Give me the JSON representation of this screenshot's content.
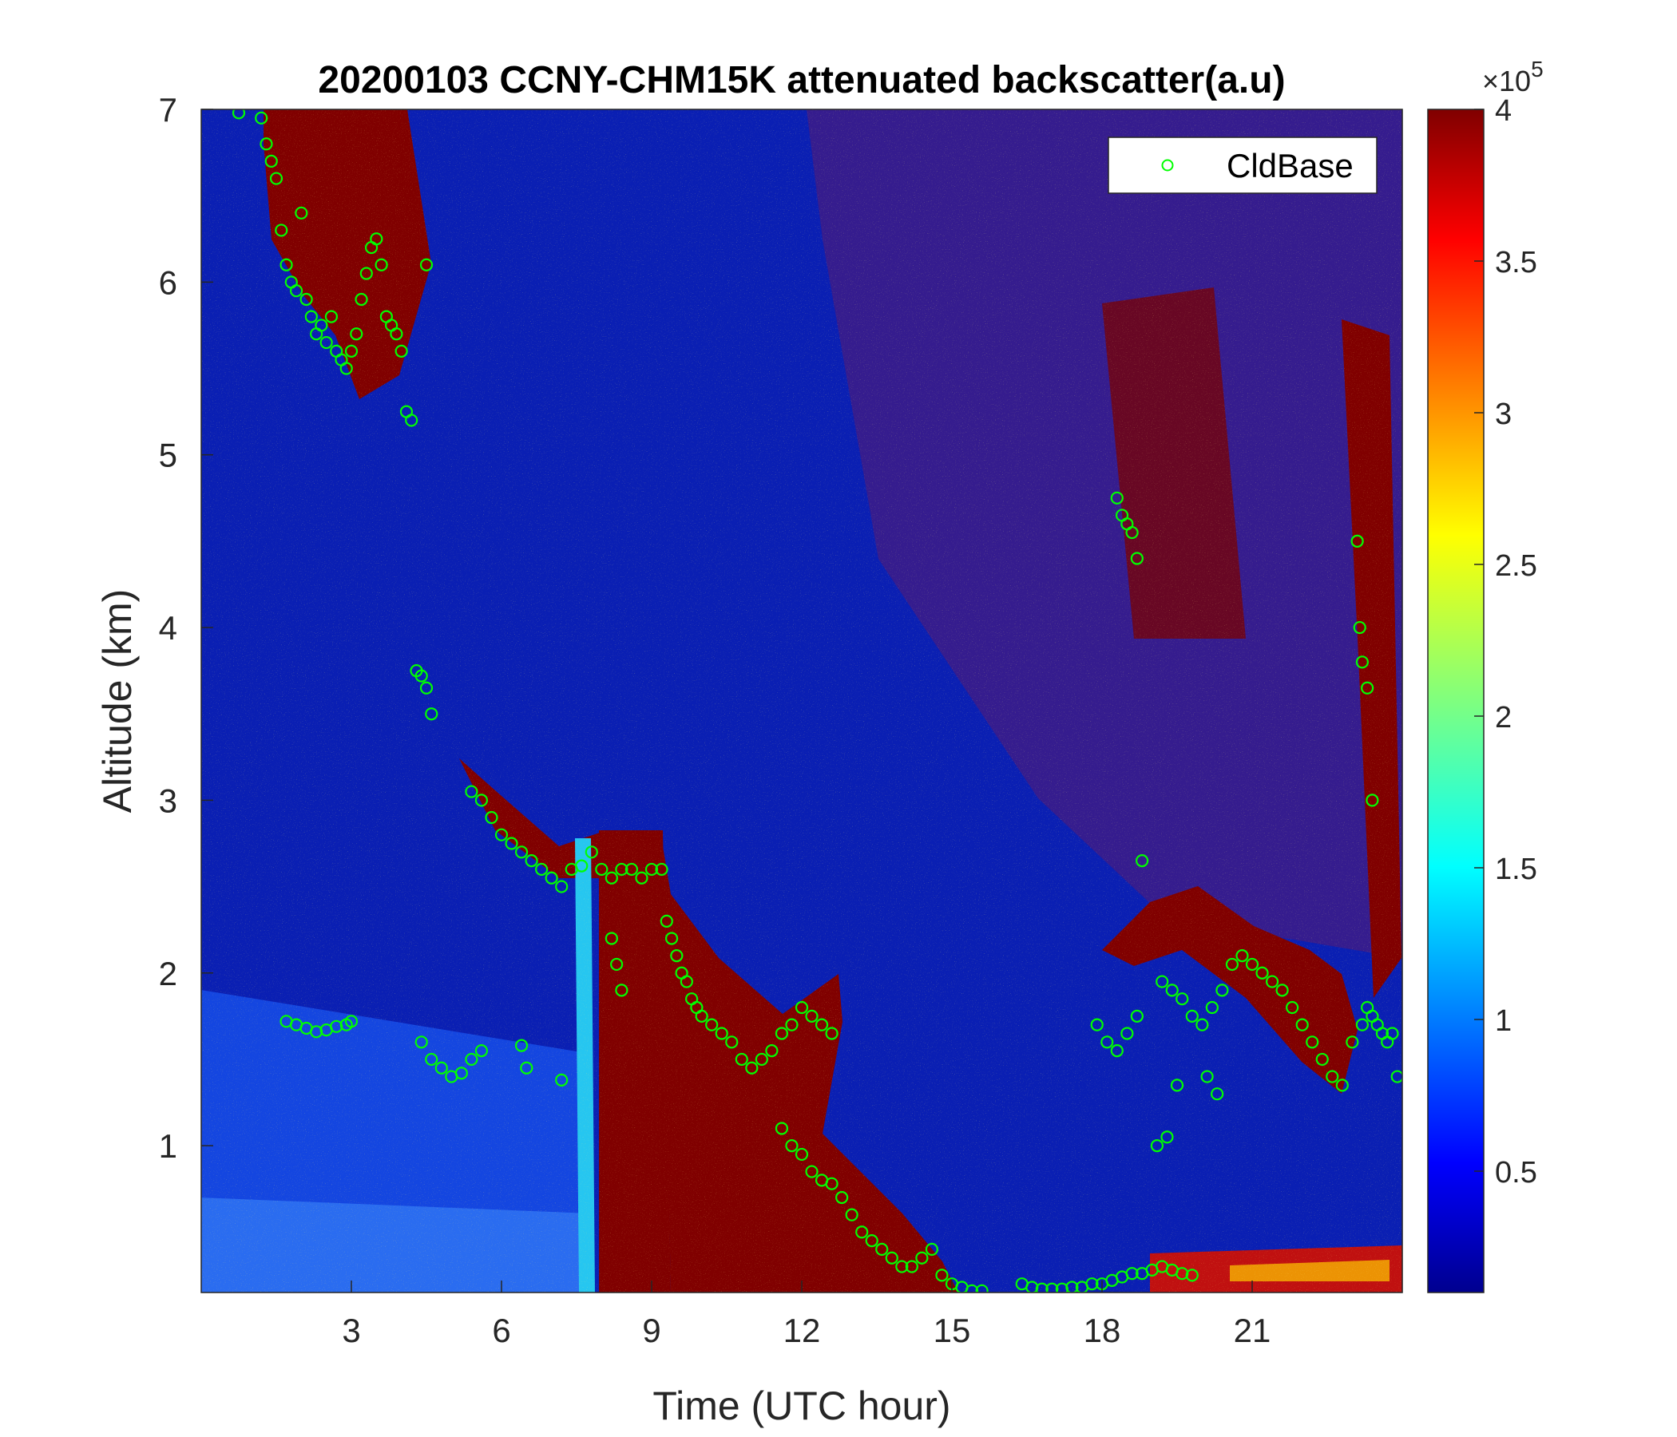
{
  "chart_data": {
    "type": "heatmap",
    "title": "20200103 CCNY-CHM15K attenuated backscatter(a.u)",
    "xlabel": "Time (UTC hour)",
    "ylabel": "Altitude (km)",
    "xlim": [
      0,
      24
    ],
    "ylim": [
      0.15,
      7
    ],
    "xticks": [
      3,
      6,
      9,
      12,
      15,
      18,
      21
    ],
    "yticks": [
      1,
      2,
      3,
      4,
      5,
      6,
      7
    ],
    "colorbar": {
      "range": [
        0.1,
        4
      ],
      "ticks": [
        0.5,
        1,
        1.5,
        2,
        2.5,
        3,
        3.5,
        4
      ],
      "multiplier_base": "×10",
      "multiplier_exp": "5",
      "colormap": "jet"
    },
    "legend": {
      "entries": [
        "CldBase"
      ],
      "placement": "top-right",
      "marker": "open-circle",
      "color": "#00ff00"
    },
    "series": [
      {
        "name": "CldBase",
        "kind": "scatter",
        "x": [
          0.75,
          1.2,
          1.3,
          1.4,
          1.5,
          1.6,
          1.7,
          1.8,
          1.9,
          2.0,
          2.1,
          2.2,
          2.3,
          2.4,
          2.5,
          2.6,
          2.7,
          2.8,
          2.9,
          3.0,
          3.1,
          3.2,
          3.3,
          3.4,
          3.5,
          3.6,
          3.7,
          3.8,
          3.9,
          4.0,
          4.1,
          4.2,
          4.5,
          4.3,
          4.4,
          4.5,
          4.6,
          1.7,
          1.9,
          2.1,
          2.3,
          2.5,
          2.7,
          2.9,
          3.0,
          4.4,
          4.6,
          4.8,
          5.0,
          5.2,
          5.4,
          5.6,
          6.4,
          6.5,
          7.2,
          5.4,
          5.6,
          5.8,
          6.0,
          6.2,
          6.4,
          6.6,
          6.8,
          7.0,
          7.2,
          7.4,
          7.6,
          7.8,
          8.0,
          8.2,
          8.4,
          8.6,
          8.8,
          9.0,
          9.2,
          8.2,
          8.3,
          8.4,
          9.3,
          9.4,
          9.5,
          9.6,
          9.7,
          9.8,
          9.9,
          10.0,
          10.2,
          10.4,
          10.6,
          10.8,
          11.0,
          11.2,
          11.4,
          11.6,
          11.8,
          12.0,
          12.2,
          12.4,
          12.6,
          11.6,
          11.8,
          12.0,
          12.2,
          12.4,
          12.6,
          12.8,
          13.0,
          13.2,
          13.4,
          13.6,
          13.8,
          14.0,
          14.2,
          14.4,
          14.6,
          14.8,
          15.0,
          15.2,
          15.4,
          15.6,
          16.4,
          16.6,
          16.8,
          17.0,
          17.2,
          17.4,
          17.6,
          17.8,
          18.0,
          18.2,
          18.4,
          18.6,
          18.8,
          19.0,
          19.2,
          19.4,
          19.6,
          19.8,
          17.9,
          18.1,
          18.3,
          18.5,
          18.7,
          18.3,
          18.4,
          18.5,
          18.6,
          18.7,
          19.2,
          19.4,
          19.6,
          19.8,
          20.0,
          20.2,
          20.4,
          20.6,
          20.8,
          21.0,
          21.2,
          21.4,
          21.6,
          21.8,
          22.0,
          22.2,
          22.4,
          22.6,
          22.8,
          23.0,
          23.2,
          23.3,
          23.4,
          23.5,
          23.6,
          23.7,
          23.8,
          23.9,
          23.1,
          23.15,
          23.2,
          23.3,
          23.4,
          18.8,
          19.1,
          19.3,
          19.5,
          20.1,
          20.3
        ],
        "y": [
          6.98,
          6.95,
          6.8,
          6.7,
          6.6,
          6.3,
          6.1,
          6.0,
          5.95,
          6.4,
          5.9,
          5.8,
          5.7,
          5.75,
          5.65,
          5.8,
          5.6,
          5.55,
          5.5,
          5.6,
          5.7,
          5.9,
          6.05,
          6.2,
          6.25,
          6.1,
          5.8,
          5.75,
          5.7,
          5.6,
          5.25,
          5.2,
          6.1,
          3.75,
          3.72,
          3.65,
          3.5,
          1.72,
          1.7,
          1.68,
          1.66,
          1.67,
          1.69,
          1.7,
          1.72,
          1.6,
          1.5,
          1.45,
          1.4,
          1.42,
          1.5,
          1.55,
          1.58,
          1.45,
          1.38,
          3.05,
          3.0,
          2.9,
          2.8,
          2.75,
          2.7,
          2.65,
          2.6,
          2.55,
          2.5,
          2.6,
          2.62,
          2.7,
          2.6,
          2.55,
          2.6,
          2.6,
          2.55,
          2.6,
          2.6,
          2.2,
          2.05,
          1.9,
          2.3,
          2.2,
          2.1,
          2.0,
          1.95,
          1.85,
          1.8,
          1.75,
          1.7,
          1.65,
          1.6,
          1.5,
          1.45,
          1.5,
          1.55,
          1.65,
          1.7,
          1.8,
          1.75,
          1.7,
          1.65,
          1.1,
          1.0,
          0.95,
          0.85,
          0.8,
          0.78,
          0.7,
          0.6,
          0.5,
          0.45,
          0.4,
          0.35,
          0.3,
          0.3,
          0.35,
          0.4,
          0.25,
          0.2,
          0.18,
          0.16,
          0.16,
          0.2,
          0.18,
          0.17,
          0.17,
          0.17,
          0.18,
          0.18,
          0.2,
          0.2,
          0.22,
          0.24,
          0.26,
          0.26,
          0.28,
          0.3,
          0.28,
          0.26,
          0.25,
          1.7,
          1.6,
          1.55,
          1.65,
          1.75,
          4.75,
          4.65,
          4.6,
          4.55,
          4.4,
          1.95,
          1.9,
          1.85,
          1.75,
          1.7,
          1.8,
          1.9,
          2.05,
          2.1,
          2.05,
          2.0,
          1.95,
          1.9,
          1.8,
          1.7,
          1.6,
          1.5,
          1.4,
          1.35,
          1.6,
          1.7,
          1.8,
          1.75,
          1.7,
          1.65,
          1.6,
          1.65,
          1.4,
          4.5,
          4.0,
          3.8,
          3.65,
          3.0,
          2.65,
          1.0,
          1.05,
          1.35,
          1.4,
          1.3
        ]
      }
    ]
  }
}
